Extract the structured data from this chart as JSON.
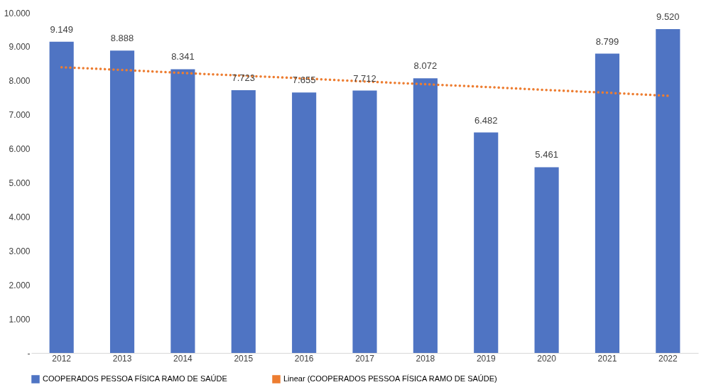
{
  "chart_data": {
    "type": "bar",
    "categories": [
      "2012",
      "2013",
      "2014",
      "2015",
      "2016",
      "2017",
      "2018",
      "2019",
      "2020",
      "2021",
      "2022"
    ],
    "series": [
      {
        "name": "COOPERADOS PESSOA FÍSICA RAMO DE SAÚDE",
        "color": "#4f74c3",
        "values": [
          9149,
          8888,
          8341,
          7723,
          7655,
          7712,
          8072,
          6482,
          5461,
          8799,
          9520
        ],
        "value_labels": [
          "9.149",
          "8.888",
          "8.341",
          "7.723",
          "7.655",
          "7.712",
          "8.072",
          "6.482",
          "5.461",
          "8.799",
          "9.520"
        ]
      },
      {
        "name": "Linear (COOPERADOS PESSOA FÍSICA RAMO DE SAÚDE)",
        "type": "line",
        "line_style": "dotted",
        "color": "#ed7d31",
        "values": [
          8400,
          8320,
          8230,
          8150,
          8070,
          7980,
          7900,
          7820,
          7730,
          7650,
          7560
        ]
      }
    ],
    "ylim": [
      0,
      10000
    ],
    "yticks": [
      {
        "value": 0,
        "label": "-"
      },
      {
        "value": 1000,
        "label": "1.000"
      },
      {
        "value": 2000,
        "label": "2.000"
      },
      {
        "value": 3000,
        "label": "3.000"
      },
      {
        "value": 4000,
        "label": "4.000"
      },
      {
        "value": 5000,
        "label": "5.000"
      },
      {
        "value": 6000,
        "label": "6.000"
      },
      {
        "value": 7000,
        "label": "7.000"
      },
      {
        "value": 8000,
        "label": "8.000"
      },
      {
        "value": 9000,
        "label": "9.000"
      },
      {
        "value": 10000,
        "label": "10.000"
      }
    ],
    "grid": false,
    "legend": "bottom"
  }
}
